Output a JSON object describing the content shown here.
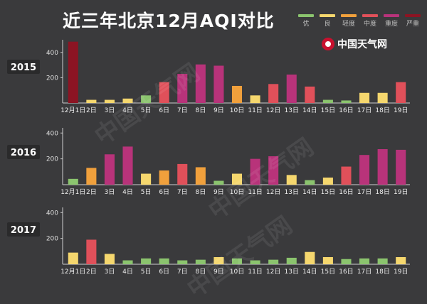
{
  "title": "近三年北京12月AQI对比",
  "brand": "中国天气网",
  "levels": [
    {
      "name": "优",
      "color": "#8bc46e"
    },
    {
      "name": "良",
      "color": "#f5d76e"
    },
    {
      "name": "轻度",
      "color": "#f0a03c"
    },
    {
      "name": "中度",
      "color": "#e0505a"
    },
    {
      "name": "重度",
      "color": "#b8337a"
    },
    {
      "name": "严重",
      "color": "#8c1423"
    }
  ],
  "chart_data": [
    {
      "type": "bar",
      "title": "2015",
      "categories": [
        "12月1日",
        "2日",
        "3日",
        "4日",
        "5日",
        "6日",
        "7日",
        "8日",
        "9日",
        "10日",
        "11日",
        "12日",
        "13日",
        "14日",
        "15日",
        "16日",
        "17日",
        "18日",
        "19日"
      ],
      "values": [
        485,
        25,
        25,
        35,
        60,
        165,
        230,
        305,
        295,
        135,
        60,
        150,
        225,
        130,
        25,
        20,
        80,
        80,
        165
      ],
      "level": [
        "严重",
        "良",
        "良",
        "良",
        "优",
        "中度",
        "重度",
        "重度",
        "重度",
        "轻度",
        "良",
        "中度",
        "重度",
        "中度",
        "优",
        "优",
        "良",
        "良",
        "中度"
      ],
      "yticks": [
        200,
        400
      ],
      "ylim": [
        0,
        500
      ]
    },
    {
      "type": "bar",
      "title": "2016",
      "categories": [
        "12月1日",
        "2日",
        "3日",
        "4日",
        "5日",
        "6日",
        "7日",
        "8日",
        "9日",
        "10日",
        "11日",
        "12日",
        "13日",
        "14日",
        "15日",
        "16日",
        "17日",
        "18日",
        "19日"
      ],
      "values": [
        45,
        130,
        235,
        295,
        85,
        110,
        160,
        135,
        30,
        85,
        200,
        220,
        75,
        35,
        55,
        140,
        230,
        275,
        270
      ],
      "level": [
        "优",
        "轻度",
        "重度",
        "重度",
        "良",
        "轻度",
        "中度",
        "轻度",
        "优",
        "良",
        "重度",
        "重度",
        "良",
        "优",
        "良",
        "中度",
        "重度",
        "重度",
        "重度"
      ],
      "yticks": [
        200,
        400
      ],
      "ylim": [
        0,
        440
      ]
    },
    {
      "type": "bar",
      "title": "2017",
      "categories": [
        "12月1日",
        "2日",
        "3日",
        "4日",
        "5日",
        "6日",
        "7日",
        "8日",
        "9日",
        "10日",
        "11日",
        "12日",
        "13日",
        "14日",
        "15日",
        "16日",
        "17日",
        "18日",
        "19日"
      ],
      "values": [
        90,
        190,
        80,
        30,
        45,
        45,
        30,
        35,
        55,
        45,
        30,
        35,
        50,
        95,
        55,
        40,
        45,
        45,
        55
      ],
      "level": [
        "良",
        "中度",
        "良",
        "优",
        "优",
        "优",
        "优",
        "优",
        "良",
        "优",
        "优",
        "优",
        "优",
        "良",
        "良",
        "优",
        "优",
        "优",
        "良"
      ],
      "yticks": [
        200,
        400
      ],
      "ylim": [
        0,
        440
      ]
    }
  ]
}
